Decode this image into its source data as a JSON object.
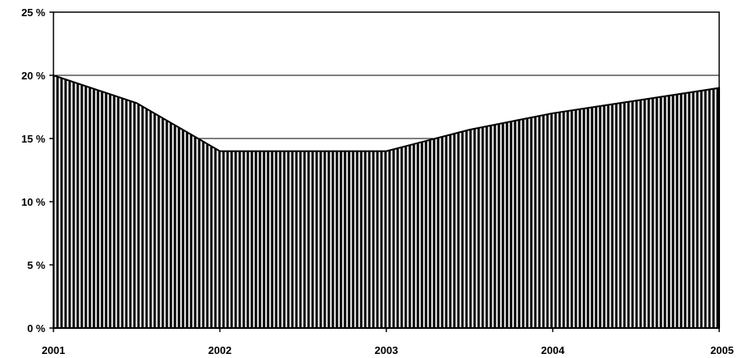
{
  "chart_data": {
    "type": "area",
    "x": [
      "2001",
      "2002",
      "2003",
      "2004",
      "2005"
    ],
    "series": [
      {
        "values": [
          20,
          14,
          14,
          17,
          19
        ],
        "points": [
          [
            2001,
            20
          ],
          [
            2001.5,
            17.8
          ],
          [
            2002,
            14
          ],
          [
            2003,
            14
          ],
          [
            2003.5,
            15.7
          ],
          [
            2004,
            17
          ],
          [
            2004.5,
            18
          ],
          [
            2005,
            19
          ]
        ]
      }
    ],
    "ylim": [
      0,
      25
    ],
    "yticks": [
      0,
      5,
      10,
      15,
      20,
      25
    ],
    "ytick_labels": [
      "0 %",
      "5 %",
      "10 %",
      "15 %",
      "20 %",
      "25 %"
    ],
    "xtick_labels": [
      "2001",
      "2002",
      "2003",
      "2004",
      "2005"
    ],
    "grid": true,
    "fill_pattern": "vertical-stripes",
    "colors": {
      "fill": "#000000",
      "stripe": "#ffffff",
      "axis": "#000000"
    }
  }
}
